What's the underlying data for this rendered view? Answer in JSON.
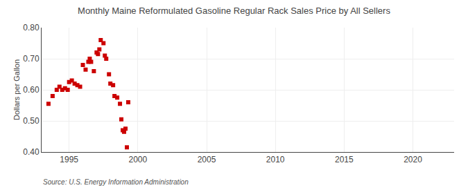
{
  "chart_data": {
    "type": "scatter",
    "title": "Monthly Maine Reformulated Gasoline Regular Rack Sales Price by All Sellers",
    "ylabel": "Dollars per Gallon",
    "annotations": [
      "Source: U.S. Energy Information Administration"
    ],
    "color": "#cc0000",
    "marker": "square",
    "grid": true,
    "xlim": [
      1993.0,
      2023.0
    ],
    "ylim": [
      0.4,
      0.8
    ],
    "xticks": [
      1995,
      2000,
      2005,
      2010,
      2015,
      2020
    ],
    "yticks": [
      {
        "value": 0.4,
        "label": "0.40"
      },
      {
        "value": 0.5,
        "label": "0.50"
      },
      {
        "value": 0.6,
        "label": "0.60"
      },
      {
        "value": 0.7,
        "label": "0.70"
      },
      {
        "value": 0.8,
        "label": "0.80"
      }
    ],
    "x": [
      1993.5,
      1993.8,
      1994.1,
      1994.3,
      1994.5,
      1994.7,
      1994.9,
      1995.0,
      1995.2,
      1995.4,
      1995.6,
      1995.8,
      1996.0,
      1996.2,
      1996.4,
      1996.5,
      1996.6,
      1996.8,
      1997.0,
      1997.1,
      1997.2,
      1997.3,
      1997.5,
      1997.6,
      1997.7,
      1997.9,
      1998.0,
      1998.2,
      1998.3,
      1998.5,
      1998.7,
      1998.8,
      1998.9,
      1999.0,
      1999.1,
      1999.2,
      1999.3
    ],
    "values": [
      0.555,
      0.58,
      0.6,
      0.61,
      0.6,
      0.605,
      0.6,
      0.625,
      0.63,
      0.62,
      0.615,
      0.61,
      0.68,
      0.665,
      0.69,
      0.7,
      0.69,
      0.66,
      0.72,
      0.715,
      0.73,
      0.76,
      0.75,
      0.71,
      0.7,
      0.65,
      0.62,
      0.615,
      0.58,
      0.575,
      0.555,
      0.505,
      0.47,
      0.465,
      0.475,
      0.415,
      0.56
    ]
  }
}
